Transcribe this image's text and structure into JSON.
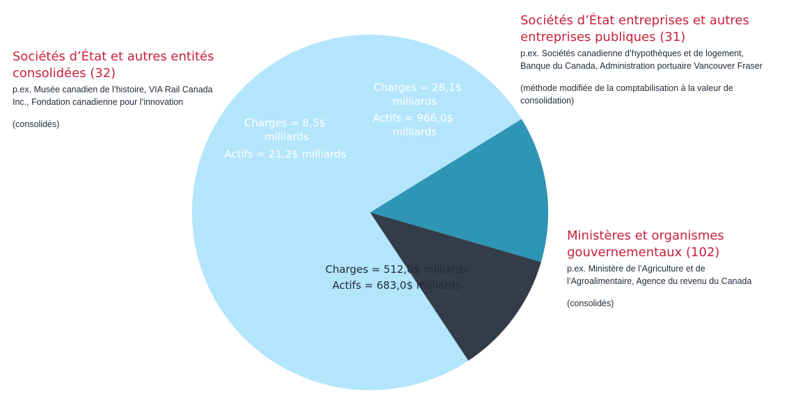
{
  "chart_data": {
    "type": "pie",
    "slices": [
      {
        "name": "Ministères et organismes gouvernementaux (102)",
        "charges_label": "Charges = 512,0$ milliards",
        "assets_label": "Actifs = 683,0$ milliards",
        "charges": 512.0,
        "assets": 683.0,
        "share": 0.755,
        "color": "#b3e5fc",
        "text_color": "#1f2a36"
      },
      {
        "name": "Sociétés d’État et autres entités consolidées (32)",
        "charges_label": "Charges = 8,5$ milliards",
        "assets_label": "Actifs = 21,2$ milliards",
        "charges": 8.5,
        "assets": 21.2,
        "share": 0.133,
        "color": "#2e95b4",
        "text_color": "#ffffff"
      },
      {
        "name": "Sociétés d’État entreprises et autres entreprises publiques (31)",
        "charges_label": "Charges = 28,1$ milliards",
        "assets_label": "Actifs = 966,0$ milliards",
        "charges": 28.1,
        "assets": 966.0,
        "share": 0.112,
        "color": "#333d49",
        "text_color": "#ffffff"
      }
    ]
  },
  "callouts": {
    "consolidated_crown": {
      "title_line1": "Sociétés d’État et autres entités",
      "title_line2": "consolidées (32)",
      "desc_line1": "p.ex. Musée canadien de l’histoire, VIA Rail Canada",
      "desc_line2": "Inc., Fondation canadienne pour l’innovation",
      "note_line1": "(consolidés)"
    },
    "enterprise_crown": {
      "title_line1": "Sociétés d’État entreprises et autres",
      "title_line2": "entreprises publiques (31)",
      "desc_line1": "p.ex. Sociétés canadienne d’hypothèques et de logement,",
      "desc_line2": "Banque du Canada, Administration portuaire Vancouver Fraser",
      "note_line1": "(méthode modifiée de la comptabilisation à la valeur de",
      "note_line2": "consolidation)"
    },
    "departments": {
      "title_line1": "Ministères et organismes",
      "title_line2": "gouvernementaux (102)",
      "desc_line1": "p.ex. Ministère de l’Agriculture et de",
      "desc_line2": "l’Agroalimentaire, Agence du revenu du Canada",
      "note_line1": "(consolidés)"
    }
  }
}
